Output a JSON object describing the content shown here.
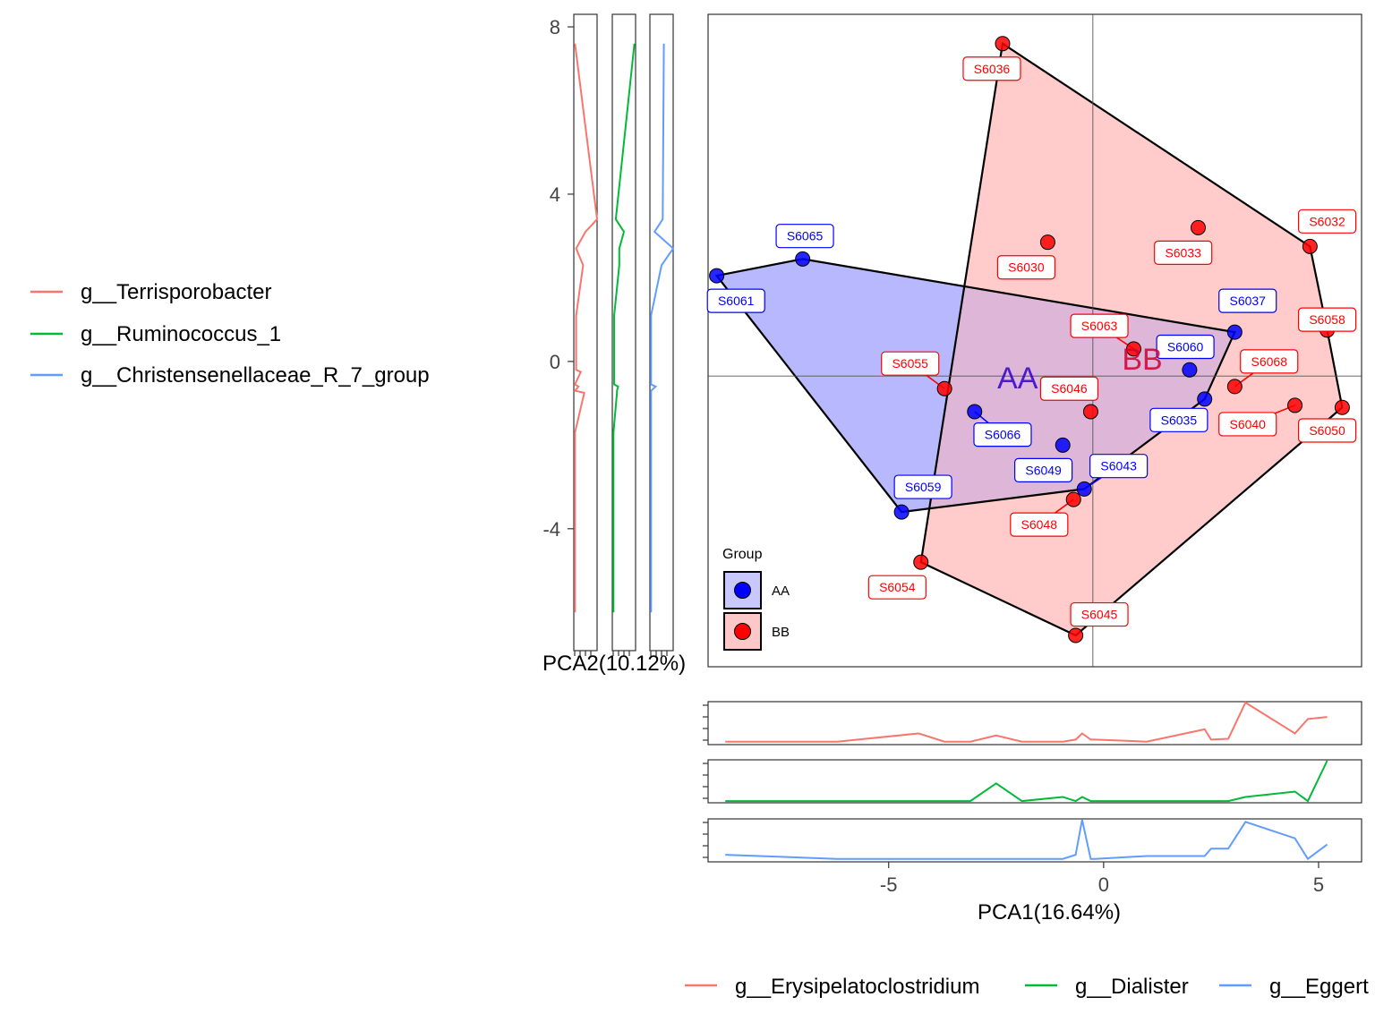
{
  "chart_data": {
    "type": "scatter",
    "main": {
      "x_label": "PCA1(16.64%)",
      "y_label": "PCA2(10.12%)",
      "xlim": [
        -9.2,
        6.0
      ],
      "ylim": [
        -7.3,
        8.3
      ],
      "x_ticks": [
        -5,
        0,
        5
      ],
      "y_ticks": [
        -4,
        0,
        4,
        8
      ],
      "reference_lines": {
        "x": -0.25,
        "y": -0.35
      },
      "groups": [
        {
          "name": "AA",
          "color": "#0000ff",
          "fill": "#c8c8ff",
          "centroid_label": [
            -2.0,
            -0.65
          ],
          "label_color": "#3300cc",
          "hull": [
            "S6061",
            "S6065",
            "S6037",
            "S6035",
            "S6043",
            "S6059"
          ]
        },
        {
          "name": "BB",
          "color": "#ff0000",
          "fill": "#ffc8c8",
          "centroid_label": [
            0.9,
            -0.2
          ],
          "label_color": "#cc0033",
          "hull": [
            "S6036",
            "S6032",
            "S6058",
            "S6050",
            "S6045",
            "S6054"
          ]
        }
      ],
      "points": [
        {
          "id": "S6061",
          "group": "AA",
          "x": -9.0,
          "y": 2.05,
          "label": [
            -8.55,
            1.45
          ]
        },
        {
          "id": "S6065",
          "group": "AA",
          "x": -7.0,
          "y": 2.45,
          "label": [
            -6.95,
            3.0
          ]
        },
        {
          "id": "S6037",
          "group": "AA",
          "x": 3.05,
          "y": 0.7,
          "label": [
            3.35,
            1.45
          ]
        },
        {
          "id": "S6060",
          "group": "AA",
          "x": 2.0,
          "y": -0.2,
          "label": [
            1.9,
            0.35
          ]
        },
        {
          "id": "S6035",
          "group": "AA",
          "x": 2.35,
          "y": -0.9,
          "label": [
            1.75,
            -1.4
          ]
        },
        {
          "id": "S6066",
          "group": "AA",
          "x": -3.0,
          "y": -1.2,
          "label": [
            -2.35,
            -1.75
          ]
        },
        {
          "id": "S6049",
          "group": "AA",
          "x": -0.95,
          "y": -2.0,
          "label": [
            -1.4,
            -2.6
          ]
        },
        {
          "id": "S6043",
          "group": "AA",
          "x": -0.45,
          "y": -3.05,
          "label": [
            0.35,
            -2.5
          ]
        },
        {
          "id": "S6059",
          "group": "AA",
          "x": -4.7,
          "y": -3.6,
          "label": [
            -4.2,
            -3.0
          ]
        },
        {
          "id": "S6036",
          "group": "BB",
          "x": -2.35,
          "y": 7.6,
          "label": [
            -2.6,
            7.0
          ]
        },
        {
          "id": "S6032",
          "group": "BB",
          "x": 4.8,
          "y": 2.75,
          "label": [
            5.2,
            3.35
          ]
        },
        {
          "id": "S6033",
          "group": "BB",
          "x": 2.2,
          "y": 3.2,
          "label": [
            1.85,
            2.6
          ]
        },
        {
          "id": "S6030",
          "group": "BB",
          "x": -1.3,
          "y": 2.85,
          "label": [
            -1.8,
            2.25
          ]
        },
        {
          "id": "S6058",
          "group": "BB",
          "x": 5.2,
          "y": 0.75,
          "label": [
            5.2,
            1.0
          ]
        },
        {
          "id": "S6063",
          "group": "BB",
          "x": 0.7,
          "y": 0.3,
          "label": [
            -0.1,
            0.85
          ]
        },
        {
          "id": "S6068",
          "group": "BB",
          "x": 3.05,
          "y": -0.6,
          "label": [
            3.85,
            0.0
          ]
        },
        {
          "id": "S6050",
          "group": "BB",
          "x": 5.55,
          "y": -1.1,
          "label": [
            5.2,
            -1.65
          ]
        },
        {
          "id": "S6040",
          "group": "BB",
          "x": 4.45,
          "y": -1.05,
          "label": [
            3.35,
            -1.5
          ]
        },
        {
          "id": "S6055",
          "group": "BB",
          "x": -3.7,
          "y": -0.65,
          "label": [
            -4.5,
            -0.05
          ]
        },
        {
          "id": "S6046",
          "group": "BB",
          "x": -0.3,
          "y": -1.2,
          "label": [
            -0.8,
            -0.65
          ]
        },
        {
          "id": "S6048",
          "group": "BB",
          "x": -0.7,
          "y": -3.3,
          "label": [
            -1.5,
            -3.9
          ]
        },
        {
          "id": "S6054",
          "group": "BB",
          "x": -4.25,
          "y": -4.8,
          "label": [
            -4.8,
            -5.4
          ]
        },
        {
          "id": "S6045",
          "group": "BB",
          "x": -0.65,
          "y": -6.55,
          "label": [
            -0.1,
            -6.05
          ]
        }
      ],
      "legend": {
        "title": "Group",
        "entries": [
          "AA",
          "BB"
        ],
        "position": "inside-bottom-left"
      }
    },
    "left_panels": {
      "type": "line",
      "y_values": [
        -6.0,
        -1.7,
        -0.75,
        -0.7,
        -0.6,
        -0.55,
        -0.25,
        -0.2,
        1.1,
        2.3,
        2.7,
        3.1,
        3.4,
        7.6
      ],
      "series": [
        {
          "name": "g__Terrisporobacter",
          "color": "#f8766d",
          "values": [
            0.05,
            0.05,
            0.45,
            0.05,
            0.2,
            0.05,
            0.3,
            0.1,
            0.1,
            0.4,
            0.1,
            0.5,
            1.0,
            0.05
          ]
        },
        {
          "name": "g__Ruminococcus_1",
          "color": "#00ba38",
          "values": [
            0.05,
            0.05,
            0.2,
            0.2,
            0.25,
            0.08,
            0.08,
            0.08,
            0.08,
            0.3,
            0.3,
            0.5,
            0.15,
            0.95
          ]
        },
        {
          "name": "g__Christensenellaceae_R_7_group",
          "color": "#619cff",
          "values": [
            0.05,
            0.05,
            0.05,
            0.05,
            0.25,
            0.05,
            0.05,
            0.05,
            0.05,
            0.5,
            1.0,
            0.2,
            0.55,
            0.6
          ]
        }
      ]
    },
    "bottom_panels": {
      "type": "line",
      "x_values": [
        -8.8,
        -6.2,
        -4.3,
        -3.7,
        -3.1,
        -2.5,
        -1.9,
        -0.95,
        -0.65,
        -0.5,
        -0.3,
        -0.2,
        1.0,
        2.35,
        2.5,
        2.9,
        3.3,
        4.45,
        4.75,
        5.2
      ],
      "series": [
        {
          "name": "g__Erysipelatoclostridium",
          "color": "#f8766d",
          "values": [
            0.05,
            0.05,
            0.25,
            0.05,
            0.05,
            0.2,
            0.05,
            0.05,
            0.1,
            0.25,
            0.1,
            0.1,
            0.05,
            0.35,
            0.1,
            0.12,
            1.0,
            0.25,
            0.6,
            0.65
          ]
        },
        {
          "name": "g__Dialister",
          "color": "#00ba38",
          "values": [
            0.02,
            0.02,
            0.02,
            0.02,
            0.02,
            0.45,
            0.02,
            0.12,
            0.02,
            0.12,
            0.02,
            0.02,
            0.02,
            0.02,
            0.02,
            0.02,
            0.12,
            0.25,
            0.02,
            1.0
          ]
        },
        {
          "name": "g__Eggert",
          "color": "#619cff",
          "values": [
            0.15,
            0.05,
            0.05,
            0.05,
            0.05,
            0.05,
            0.05,
            0.05,
            0.15,
            1.0,
            0.05,
            0.05,
            0.12,
            0.12,
            0.3,
            0.3,
            0.95,
            0.55,
            0.05,
            0.4
          ]
        }
      ]
    }
  }
}
